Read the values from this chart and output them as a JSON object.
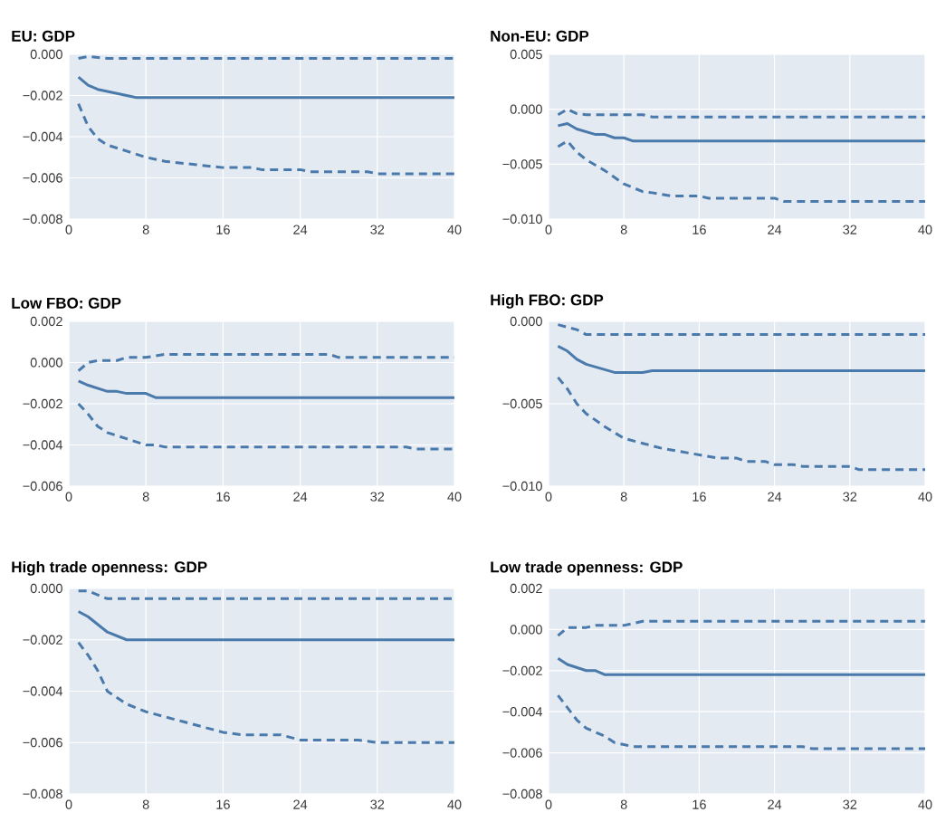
{
  "chart_data": [
    {
      "type": "line",
      "title": "EU: GDP",
      "xlim": [
        0,
        40
      ],
      "xticks": [
        0,
        8,
        16,
        24,
        32,
        40
      ],
      "ylim": [
        -0.008,
        0
      ],
      "yticks": [
        {
          "value": -0.008,
          "label": "−0.008"
        },
        {
          "value": -0.006,
          "label": "−0.006"
        },
        {
          "value": -0.004,
          "label": "−0.004"
        },
        {
          "value": -0.002,
          "label": "−0.002"
        },
        {
          "value": 0,
          "label": "0.000"
        }
      ],
      "grid": true,
      "series": [
        {
          "color": "#4a7aab",
          "line_style": "dashed",
          "x": [
            1,
            2,
            4,
            40
          ],
          "values": [
            -0.0002,
            -0.0001,
            -0.0002,
            -0.0002
          ]
        },
        {
          "color": "#4a7aab",
          "line_style": "solid",
          "x": [
            1,
            2,
            3,
            7,
            40
          ],
          "values": [
            -0.0011,
            -0.0015,
            -0.0017,
            -0.0021,
            -0.0021
          ]
        },
        {
          "color": "#4a7aab",
          "line_style": "dashed",
          "x": [
            1,
            2,
            3,
            4,
            6,
            8,
            10,
            12,
            16,
            19,
            20,
            24,
            25,
            31,
            32,
            40
          ],
          "values": [
            -0.0024,
            -0.0035,
            -0.0041,
            -0.0044,
            -0.0047,
            -0.005,
            -0.0052,
            -0.0053,
            -0.0055,
            -0.0055,
            -0.0056,
            -0.0056,
            -0.0057,
            -0.0057,
            -0.0058,
            -0.0058
          ]
        }
      ]
    },
    {
      "type": "line",
      "title": "Non-EU: GDP",
      "xlim": [
        0,
        40
      ],
      "xticks": [
        0,
        8,
        16,
        24,
        32,
        40
      ],
      "ylim": [
        -0.01,
        0.005
      ],
      "yticks": [
        {
          "value": -0.01,
          "label": "−0.010"
        },
        {
          "value": -0.005,
          "label": "−0.005"
        },
        {
          "value": 0,
          "label": "0.000"
        },
        {
          "value": 0.005,
          "label": "0.005"
        }
      ],
      "grid": true,
      "series": [
        {
          "color": "#4a7aab",
          "line_style": "dashed",
          "x": [
            1,
            2,
            3,
            4,
            10,
            11,
            40
          ],
          "values": [
            -0.0005,
            0.0,
            -0.0004,
            -0.0005,
            -0.0005,
            -0.0007,
            -0.0007
          ]
        },
        {
          "color": "#4a7aab",
          "line_style": "solid",
          "x": [
            1,
            2,
            3,
            5,
            6,
            7,
            8,
            9,
            40
          ],
          "values": [
            -0.0015,
            -0.0013,
            -0.0018,
            -0.0023,
            -0.0023,
            -0.0026,
            -0.0026,
            -0.0029,
            -0.0029
          ]
        },
        {
          "color": "#4a7aab",
          "line_style": "dashed",
          "x": [
            1,
            2,
            3,
            4,
            6,
            8,
            10,
            11,
            13,
            16,
            17,
            24,
            25,
            40
          ],
          "values": [
            -0.0034,
            -0.0029,
            -0.0039,
            -0.0046,
            -0.0056,
            -0.0068,
            -0.0075,
            -0.0076,
            -0.0079,
            -0.0079,
            -0.0081,
            -0.0081,
            -0.0084,
            -0.0084
          ]
        }
      ]
    },
    {
      "type": "line",
      "title": "Low FBO: GDP",
      "xlim": [
        0,
        40
      ],
      "xticks": [
        0,
        8,
        16,
        24,
        32,
        40
      ],
      "ylim": [
        -0.006,
        0.002
      ],
      "yticks": [
        {
          "value": -0.006,
          "label": "−0.006"
        },
        {
          "value": -0.004,
          "label": "−0.004"
        },
        {
          "value": -0.002,
          "label": "−0.002"
        },
        {
          "value": 0,
          "label": "0.000"
        },
        {
          "value": 0.002,
          "label": "0.002"
        }
      ],
      "grid": true,
      "series": [
        {
          "color": "#4a7aab",
          "line_style": "dashed",
          "x": [
            1,
            2,
            3,
            5,
            6,
            8,
            10,
            27,
            28,
            40
          ],
          "values": [
            -0.0004,
            0.0,
            0.0001,
            0.0001,
            0.00025,
            0.00025,
            0.0004,
            0.0004,
            0.00025,
            0.00025
          ]
        },
        {
          "color": "#4a7aab",
          "line_style": "solid",
          "x": [
            1,
            2,
            4,
            5,
            6,
            8,
            9,
            40
          ],
          "values": [
            -0.0009,
            -0.0011,
            -0.0014,
            -0.0014,
            -0.0015,
            -0.0015,
            -0.0017,
            -0.0017
          ]
        },
        {
          "color": "#4a7aab",
          "line_style": "dashed",
          "x": [
            1,
            2,
            3,
            4,
            6,
            8,
            9,
            10,
            35,
            36,
            40
          ],
          "values": [
            -0.002,
            -0.0025,
            -0.0031,
            -0.0034,
            -0.0037,
            -0.004,
            -0.004,
            -0.0041,
            -0.0041,
            -0.0042,
            -0.0042
          ]
        }
      ]
    },
    {
      "type": "line",
      "title": "High FBO: GDP",
      "xlim": [
        0,
        40
      ],
      "xticks": [
        0,
        8,
        16,
        24,
        32,
        40
      ],
      "ylim": [
        -0.01,
        0
      ],
      "yticks": [
        {
          "value": -0.01,
          "label": "−0.010"
        },
        {
          "value": -0.005,
          "label": "−0.005"
        },
        {
          "value": 0,
          "label": "0.000"
        }
      ],
      "grid": true,
      "series": [
        {
          "color": "#4a7aab",
          "line_style": "dashed",
          "x": [
            1,
            3,
            4,
            40
          ],
          "values": [
            -0.0002,
            -0.0005,
            -0.0008,
            -0.0008
          ]
        },
        {
          "color": "#4a7aab",
          "line_style": "solid",
          "x": [
            1,
            2,
            3,
            4,
            7,
            10,
            11,
            40
          ],
          "values": [
            -0.0015,
            -0.0018,
            -0.0023,
            -0.0026,
            -0.0031,
            -0.0031,
            -0.003,
            -0.003
          ]
        },
        {
          "color": "#4a7aab",
          "line_style": "dashed",
          "x": [
            1,
            2,
            3,
            4,
            6,
            8,
            10,
            12,
            14,
            16,
            18,
            20,
            21,
            23,
            24,
            26,
            27,
            32,
            33,
            40
          ],
          "values": [
            -0.0034,
            -0.0041,
            -0.005,
            -0.0056,
            -0.0064,
            -0.0071,
            -0.0074,
            -0.0077,
            -0.0079,
            -0.0081,
            -0.0083,
            -0.0083,
            -0.0085,
            -0.0085,
            -0.0087,
            -0.0087,
            -0.0088,
            -0.0088,
            -0.009,
            -0.009
          ]
        }
      ]
    },
    {
      "type": "line",
      "title": "High trade openness: GDP",
      "xlim": [
        0,
        40
      ],
      "xticks": [
        0,
        8,
        16,
        24,
        32,
        40
      ],
      "ylim": [
        -0.008,
        0
      ],
      "yticks": [
        {
          "value": -0.008,
          "label": "−0.008"
        },
        {
          "value": -0.006,
          "label": "−0.006"
        },
        {
          "value": -0.004,
          "label": "−0.004"
        },
        {
          "value": -0.002,
          "label": "−0.002"
        },
        {
          "value": 0,
          "label": "0.000"
        }
      ],
      "grid": true,
      "series": [
        {
          "color": "#4a7aab",
          "line_style": "dashed",
          "x": [
            1,
            2,
            4,
            40
          ],
          "values": [
            -0.0001,
            -0.0001,
            -0.0004,
            -0.0004
          ]
        },
        {
          "color": "#4a7aab",
          "line_style": "solid",
          "x": [
            1,
            2,
            4,
            6,
            40
          ],
          "values": [
            -0.0009,
            -0.0011,
            -0.0017,
            -0.002,
            -0.002
          ]
        },
        {
          "color": "#4a7aab",
          "line_style": "dashed",
          "x": [
            1,
            2,
            3,
            4,
            6,
            8,
            10,
            12,
            14,
            16,
            18,
            22,
            24,
            30,
            32,
            40
          ],
          "values": [
            -0.0021,
            -0.0026,
            -0.0032,
            -0.004,
            -0.0045,
            -0.0048,
            -0.005,
            -0.0052,
            -0.0054,
            -0.0056,
            -0.0057,
            -0.0057,
            -0.0059,
            -0.0059,
            -0.006,
            -0.006
          ]
        }
      ]
    },
    {
      "type": "line",
      "title": "Low trade openness: GDP",
      "xlim": [
        0,
        40
      ],
      "xticks": [
        0,
        8,
        16,
        24,
        32,
        40
      ],
      "ylim": [
        -0.008,
        0.002
      ],
      "yticks": [
        {
          "value": -0.008,
          "label": "−0.008"
        },
        {
          "value": -0.006,
          "label": "−0.006"
        },
        {
          "value": -0.004,
          "label": "−0.004"
        },
        {
          "value": -0.002,
          "label": "−0.002"
        },
        {
          "value": 0,
          "label": "0.000"
        },
        {
          "value": 0.002,
          "label": "0.002"
        }
      ],
      "grid": true,
      "series": [
        {
          "color": "#4a7aab",
          "line_style": "dashed",
          "x": [
            1,
            2,
            4,
            5,
            8,
            10,
            40
          ],
          "values": [
            -0.0003,
            0.0001,
            0.0001,
            0.0002,
            0.0002,
            0.0004,
            0.0004
          ]
        },
        {
          "color": "#4a7aab",
          "line_style": "solid",
          "x": [
            1,
            2,
            4,
            5,
            6,
            40
          ],
          "values": [
            -0.0014,
            -0.0017,
            -0.002,
            -0.002,
            -0.0022,
            -0.0022
          ]
        },
        {
          "color": "#4a7aab",
          "line_style": "dashed",
          "x": [
            1,
            2,
            3,
            4,
            6,
            7,
            8,
            9,
            27,
            28,
            40
          ],
          "values": [
            -0.0032,
            -0.0038,
            -0.0044,
            -0.0048,
            -0.0052,
            -0.0055,
            -0.0056,
            -0.0057,
            -0.0057,
            -0.0058,
            -0.0058
          ]
        }
      ]
    }
  ]
}
